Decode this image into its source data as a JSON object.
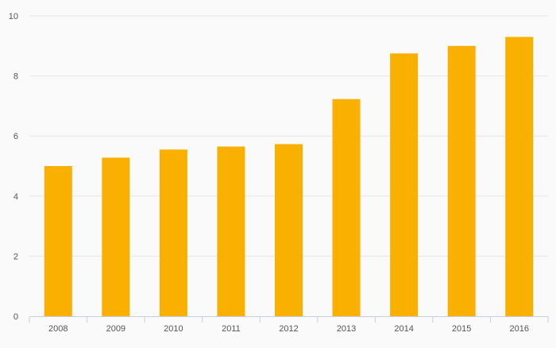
{
  "colors": {
    "background": "#fafafa",
    "bar": "#f9b000",
    "grid": "#e6e6e6",
    "axis": "#c8cee0",
    "tick_text": "#555555"
  },
  "chart_data": {
    "type": "bar",
    "categories": [
      "2008",
      "2009",
      "2010",
      "2011",
      "2012",
      "2013",
      "2014",
      "2015",
      "2016"
    ],
    "values": [
      5.0,
      5.28,
      5.55,
      5.65,
      5.73,
      7.23,
      8.75,
      9.0,
      9.3
    ],
    "title": "",
    "xlabel": "",
    "ylabel": "",
    "ylim": [
      0,
      10
    ],
    "yticks": [
      "0",
      "2",
      "4",
      "6",
      "8",
      "10"
    ],
    "grid": true,
    "legend": "none"
  }
}
